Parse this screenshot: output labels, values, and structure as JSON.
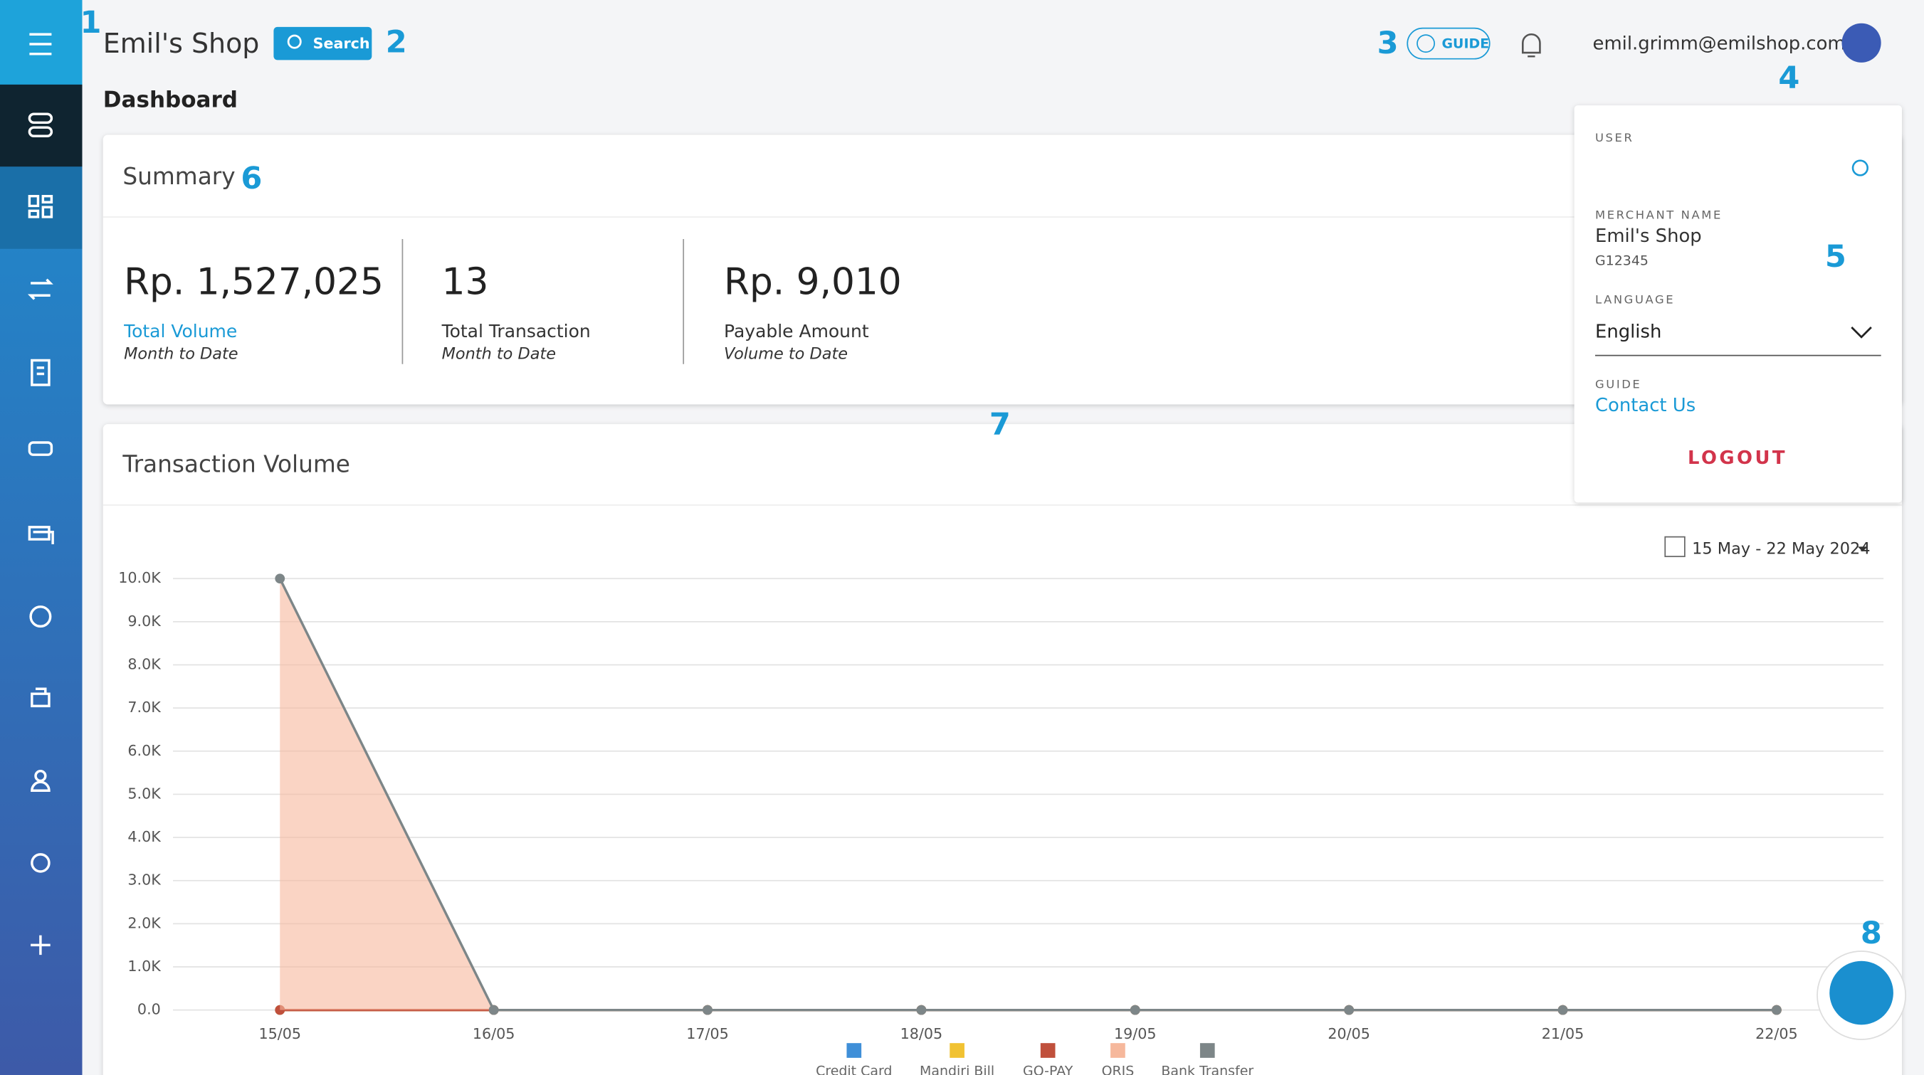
{
  "header": {
    "shop_name": "Emil's Shop",
    "search": "Search",
    "guide": "GUIDE",
    "email": "emil.grimm@emilshop.com"
  },
  "page_title": "Dashboard",
  "annotations": [
    "1",
    "2",
    "3",
    "4",
    "5",
    "6",
    "7",
    "8"
  ],
  "summary": {
    "title": "Summary",
    "metrics": [
      {
        "value": "Rp. 1,527,025",
        "label": "Total Volume",
        "sub": "Month to Date"
      },
      {
        "value": "13",
        "label": "Total Transaction",
        "sub": "Month to Date"
      },
      {
        "value": "Rp. 9,010",
        "label": "Payable Amount",
        "sub": "Volume to Date"
      }
    ]
  },
  "dropdown": {
    "user_label": "USER",
    "merchant_label": "MERCHANT NAME",
    "merchant_name": "Emil's Shop",
    "merchant_id": "G12345",
    "language_label": "LANGUAGE",
    "language": "English",
    "guide_label": "GUIDE",
    "contact": "Contact Us",
    "logout": "LOGOUT"
  },
  "chart_data": {
    "type": "line",
    "title": "Transaction Volume",
    "date_range": "15 May - 22 May 2024",
    "categories": [
      "15/05",
      "16/05",
      "17/05",
      "18/05",
      "19/05",
      "20/05",
      "21/05",
      "22/05"
    ],
    "series": [
      {
        "name": "Credit Card",
        "color": "#3f8fd8",
        "area": false,
        "values": [
          0,
          0,
          0,
          0,
          0,
          0,
          0,
          0
        ]
      },
      {
        "name": "Mandiri Bill",
        "color": "#f1c232",
        "area": false,
        "values": [
          0,
          0,
          0,
          0,
          0,
          0,
          0,
          0
        ]
      },
      {
        "name": "GO-PAY",
        "color": "#c0503c",
        "area": false,
        "values": [
          0,
          0,
          0,
          0,
          0,
          0,
          0,
          0
        ]
      },
      {
        "name": "QRIS",
        "color": "#f6b89c",
        "area": true,
        "values": [
          10000,
          0,
          0,
          0,
          0,
          0,
          0,
          0
        ]
      },
      {
        "name": "Bank Transfer",
        "color": "#7d8688",
        "area": false,
        "values": [
          10000,
          0,
          0,
          0,
          0,
          0,
          0,
          0
        ]
      }
    ],
    "ylim": [
      0,
      10000
    ],
    "yticks": [
      {
        "value": 0,
        "label": "0.0"
      },
      {
        "value": 1000,
        "label": "1.0K"
      },
      {
        "value": 2000,
        "label": "2.0K"
      },
      {
        "value": 3000,
        "label": "3.0K"
      },
      {
        "value": 4000,
        "label": "4.0K"
      },
      {
        "value": 5000,
        "label": "5.0K"
      },
      {
        "value": 6000,
        "label": "6.0K"
      },
      {
        "value": 7000,
        "label": "7.0K"
      },
      {
        "value": 8000,
        "label": "8.0K"
      },
      {
        "value": 9000,
        "label": "9.0K"
      },
      {
        "value": 10000,
        "label": "10.0K"
      }
    ],
    "grid": true
  }
}
